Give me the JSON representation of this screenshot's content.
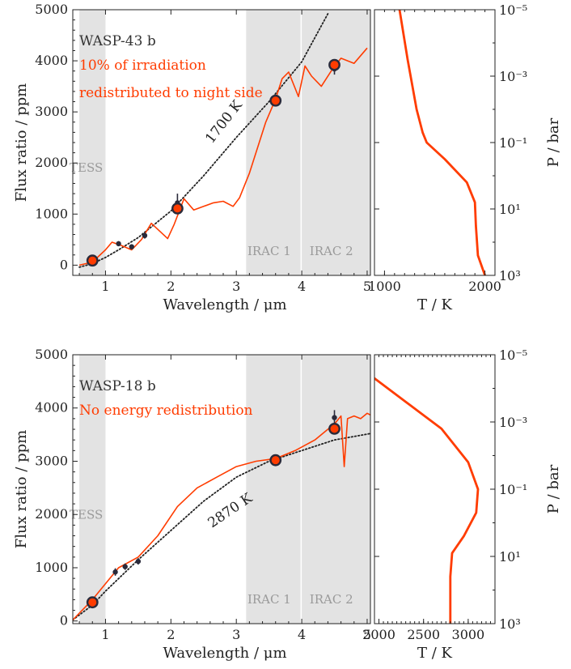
{
  "colors": {
    "model": "#ff3c00",
    "blackbody": "#222222",
    "obs_marker": "#2a2a3a",
    "band_fill": "#e3e3e3",
    "annotation_planet": "#333333",
    "annotation_note": "#ff3c00"
  },
  "chart_data": [
    {
      "type": "line",
      "panel": "spectrum-top",
      "xlabel": "Wavelength / μm",
      "ylabel": "Flux ratio / ppm",
      "xlim": [
        0.5,
        5.05
      ],
      "ylim": [
        -200,
        5000
      ],
      "xticks": [
        "1",
        "2",
        "3",
        "4",
        "5"
      ],
      "yticks": [
        "0",
        "1000",
        "2000",
        "3000",
        "4000",
        "5000"
      ],
      "planet_label": "WASP-43 b",
      "note_lines": [
        "10% of irradiation",
        "redistributed to night side"
      ],
      "blackbody_label": "1700 K",
      "bands": [
        {
          "name": "TESS",
          "range": [
            0.6,
            1.0
          ]
        },
        {
          "name": "IRAC 1",
          "range": [
            3.15,
            4.0
          ]
        },
        {
          "name": "IRAC 2",
          "range": [
            4.0,
            5.05
          ]
        }
      ],
      "blackbody_curve": {
        "x": [
          0.6,
          0.8,
          1.0,
          1.2,
          1.5,
          2.0,
          2.5,
          3.0,
          3.5,
          4.0,
          4.4
        ],
        "y": [
          -40,
          30,
          150,
          300,
          540,
          1060,
          1750,
          2500,
          3200,
          3980,
          4920
        ]
      },
      "model_curve": {
        "x": [
          0.6,
          0.8,
          1.0,
          1.1,
          1.25,
          1.4,
          1.55,
          1.7,
          1.8,
          1.95,
          2.05,
          2.2,
          2.35,
          2.5,
          2.65,
          2.8,
          2.95,
          3.05,
          3.2,
          3.35,
          3.45,
          3.6,
          3.7,
          3.8,
          3.95,
          4.05,
          4.15,
          4.3,
          4.45,
          4.6,
          4.8,
          5.0
        ],
        "y": [
          0,
          60,
          300,
          450,
          380,
          300,
          500,
          820,
          700,
          520,
          800,
          1300,
          1080,
          1150,
          1220,
          1250,
          1150,
          1320,
          1800,
          2400,
          2800,
          3250,
          3650,
          3780,
          3300,
          3900,
          3700,
          3500,
          3800,
          4050,
          3950,
          4250
        ]
      },
      "observations": [
        {
          "x": 0.8,
          "y": 100,
          "err": 60
        },
        {
          "x": 1.2,
          "y": 420,
          "err": 50
        },
        {
          "x": 1.4,
          "y": 360,
          "err": 50
        },
        {
          "x": 1.6,
          "y": 580,
          "err": 60
        },
        {
          "x": 2.1,
          "y": 1220,
          "err": 180
        },
        {
          "x": 3.6,
          "y": 3230,
          "err": 50
        },
        {
          "x": 4.5,
          "y": 3840,
          "err": 110
        }
      ],
      "model_binned": [
        {
          "x": 0.8,
          "y": 90
        },
        {
          "x": 2.1,
          "y": 1110
        },
        {
          "x": 3.6,
          "y": 3220
        },
        {
          "x": 4.5,
          "y": 3920
        }
      ]
    },
    {
      "type": "line",
      "panel": "profile-top",
      "xlabel": "T / K",
      "ylabel": "P / bar",
      "xlim": [
        900,
        2100
      ],
      "ylim_log10": [
        -5,
        3
      ],
      "xticks": [
        "1000",
        "2000"
      ],
      "yticks": [
        "10⁻⁵",
        "10⁻³",
        "10⁻¹",
        "10¹",
        "10³"
      ],
      "profile": {
        "T": [
          1150,
          1230,
          1320,
          1380,
          1420,
          1600,
          1820,
          1900,
          1910,
          1930,
          2000
        ],
        "logP": [
          -5,
          -3.5,
          -2,
          -1.3,
          -1,
          -0.5,
          0.2,
          0.8,
          1.5,
          2.4,
          3
        ]
      }
    },
    {
      "type": "line",
      "panel": "spectrum-bottom",
      "xlabel": "Wavelength / μm",
      "ylabel": "Flux ratio / ppm",
      "xlim": [
        0.5,
        5.05
      ],
      "ylim": [
        -50,
        5000
      ],
      "xticks": [
        "1",
        "2",
        "3",
        "4",
        "5"
      ],
      "yticks": [
        "0",
        "1000",
        "2000",
        "3000",
        "4000",
        "5000"
      ],
      "planet_label": "WASP-18 b",
      "note_lines": [
        "No energy redistribution"
      ],
      "blackbody_label": "2870 K",
      "bands": [
        {
          "name": "TESS",
          "range": [
            0.6,
            1.0
          ]
        },
        {
          "name": "IRAC 1",
          "range": [
            3.15,
            4.0
          ]
        },
        {
          "name": "IRAC 2",
          "range": [
            4.0,
            5.05
          ]
        }
      ],
      "blackbody_curve": {
        "x": [
          0.5,
          0.8,
          1.0,
          1.5,
          2.0,
          2.5,
          3.0,
          3.5,
          4.0,
          4.5,
          5.05
        ],
        "y": [
          20,
          300,
          560,
          1150,
          1700,
          2250,
          2700,
          3000,
          3200,
          3400,
          3520
        ]
      },
      "model_curve": {
        "x": [
          0.5,
          0.8,
          1.0,
          1.2,
          1.5,
          1.8,
          2.1,
          2.4,
          2.7,
          3.0,
          3.3,
          3.6,
          3.9,
          4.2,
          4.4,
          4.5,
          4.6,
          4.65,
          4.7,
          4.8,
          4.9,
          5.0,
          5.05
        ],
        "y": [
          20,
          400,
          700,
          1000,
          1200,
          1600,
          2150,
          2500,
          2700,
          2900,
          3000,
          3050,
          3200,
          3400,
          3600,
          3700,
          3850,
          2900,
          3800,
          3850,
          3800,
          3900,
          3870
        ]
      },
      "observations": [
        {
          "x": 0.8,
          "y": 360,
          "err": 40
        },
        {
          "x": 1.15,
          "y": 920,
          "err": 70
        },
        {
          "x": 1.3,
          "y": 1020,
          "err": 60
        },
        {
          "x": 1.5,
          "y": 1120,
          "err": 60
        },
        {
          "x": 3.6,
          "y": 2980,
          "err": 60
        },
        {
          "x": 4.5,
          "y": 3820,
          "err": 140
        }
      ],
      "model_binned": [
        {
          "x": 0.8,
          "y": 350
        },
        {
          "x": 3.6,
          "y": 3020
        },
        {
          "x": 4.5,
          "y": 3610
        }
      ]
    },
    {
      "type": "line",
      "panel": "profile-bottom",
      "xlabel": "T / K",
      "ylabel": "P / bar",
      "xlim": [
        1950,
        3300
      ],
      "ylim_log10": [
        -5,
        3
      ],
      "xticks": [
        "2000",
        "2500",
        "3000"
      ],
      "yticks": [
        "10⁻⁵",
        "10⁻³",
        "10⁻¹",
        "10¹",
        "10³"
      ],
      "profile": {
        "T": [
          1950,
          2300,
          2700,
          3000,
          3110,
          3090,
          2950,
          2820,
          2800,
          2800
        ],
        "logP": [
          -4.3,
          -3.6,
          -2.8,
          -1.8,
          -1.0,
          -0.3,
          0.4,
          0.9,
          1.6,
          3.0
        ]
      }
    }
  ]
}
